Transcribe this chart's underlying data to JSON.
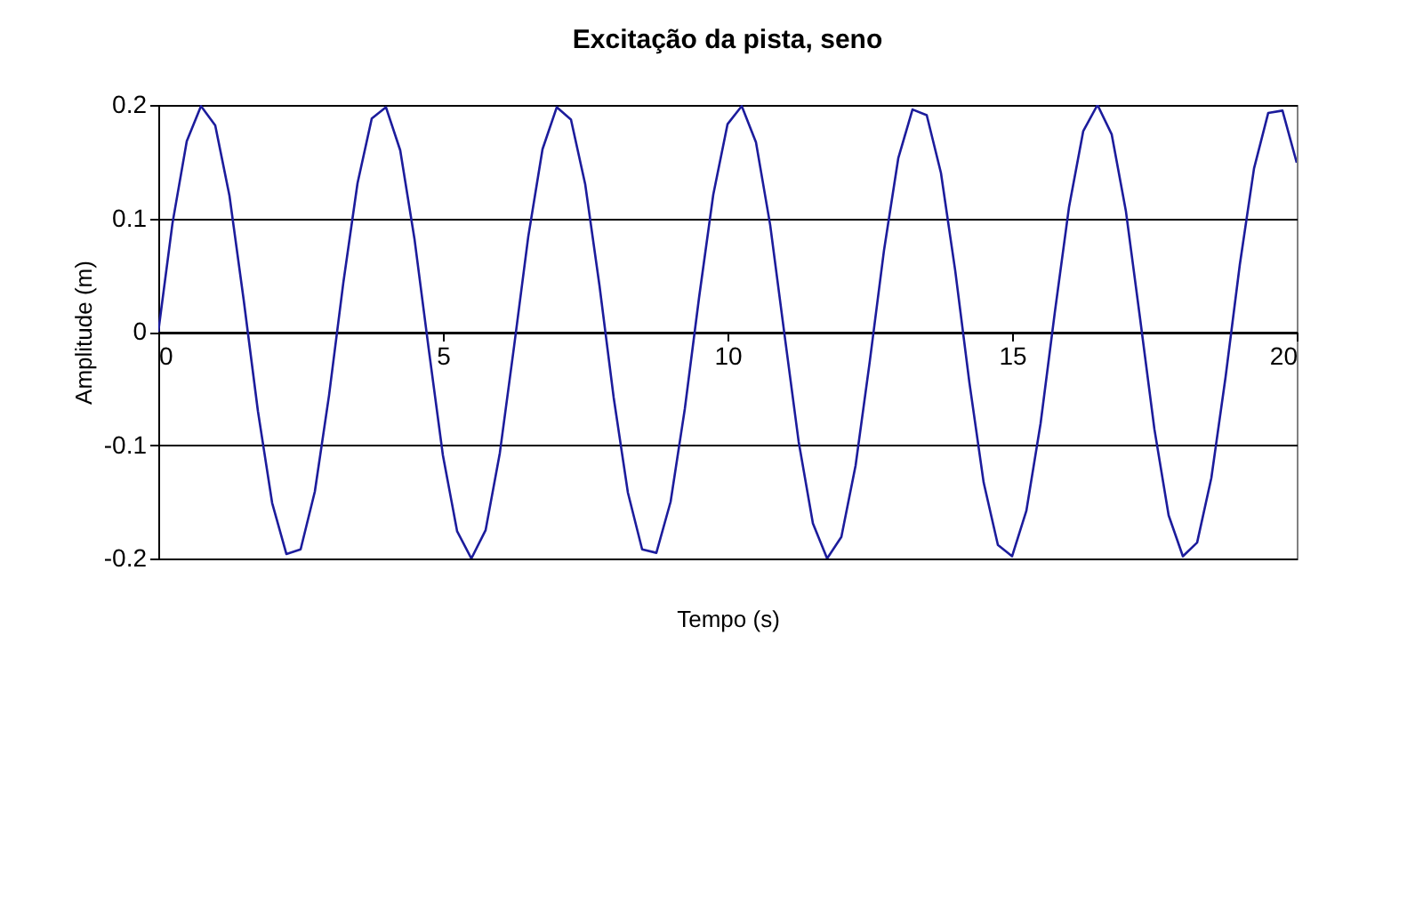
{
  "chart_data": {
    "type": "line",
    "title": "Excitação da pista, seno",
    "xlabel": "Tempo (s)",
    "ylabel": "Amplitude (m)",
    "x": [
      0,
      0.25,
      0.5,
      0.75,
      1,
      1.25,
      1.5,
      1.75,
      2,
      2.25,
      2.5,
      2.75,
      3,
      3.25,
      3.5,
      3.75,
      4,
      4.25,
      4.5,
      4.75,
      5,
      5.25,
      5.5,
      5.75,
      6,
      6.25,
      6.5,
      6.75,
      7,
      7.25,
      7.5,
      7.75,
      8,
      8.25,
      8.5,
      8.75,
      9,
      9.25,
      9.5,
      9.75,
      10,
      10.25,
      10.5,
      10.75,
      11,
      11.25,
      11.5,
      11.75,
      12,
      12.25,
      12.5,
      12.75,
      13,
      13.25,
      13.5,
      13.75,
      14,
      14.25,
      14.5,
      14.75,
      15,
      15.25,
      15.5,
      15.75,
      16,
      16.25,
      16.5,
      16.75,
      17,
      17.25,
      17.5,
      17.75,
      18,
      18.25,
      18.5,
      18.75,
      19,
      19.25,
      19.5,
      19.75,
      20
    ],
    "series": [
      {
        "color": "#1c1c9c",
        "values": [
          0,
          0.096,
          0.168,
          0.199,
          0.182,
          0.12,
          0.028,
          -0.07,
          -0.151,
          -0.196,
          -0.192,
          -0.141,
          -0.056,
          0.043,
          0.131,
          0.188,
          0.198,
          0.16,
          0.082,
          -0.015,
          -0.109,
          -0.176,
          -0.2,
          -0.175,
          -0.107,
          -0.013,
          0.084,
          0.161,
          0.198,
          0.187,
          0.13,
          0.041,
          -0.058,
          -0.142,
          -0.192,
          -0.195,
          -0.15,
          -0.068,
          0.03,
          0.121,
          0.183,
          0.199,
          0.167,
          0.094,
          -0.002,
          -0.097,
          -0.169,
          -0.2,
          -0.181,
          -0.118,
          -0.026,
          0.072,
          0.153,
          0.196,
          0.191,
          0.14,
          0.054,
          -0.045,
          -0.133,
          -0.188,
          -0.198,
          -0.158,
          -0.081,
          0.017,
          0.11,
          0.177,
          0.2,
          0.174,
          0.106,
          0.011,
          -0.086,
          -0.162,
          -0.198,
          -0.186,
          -0.129,
          -0.04,
          0.059,
          0.144,
          0.193,
          0.195,
          0.149
        ]
      }
    ],
    "xlim": [
      0,
      20
    ],
    "ylim": [
      -0.2,
      0.2
    ],
    "xticks": [
      0,
      5,
      10,
      15,
      20
    ],
    "yticks": [
      -0.2,
      -0.1,
      0,
      0.1,
      0.2
    ],
    "grid": "y"
  }
}
